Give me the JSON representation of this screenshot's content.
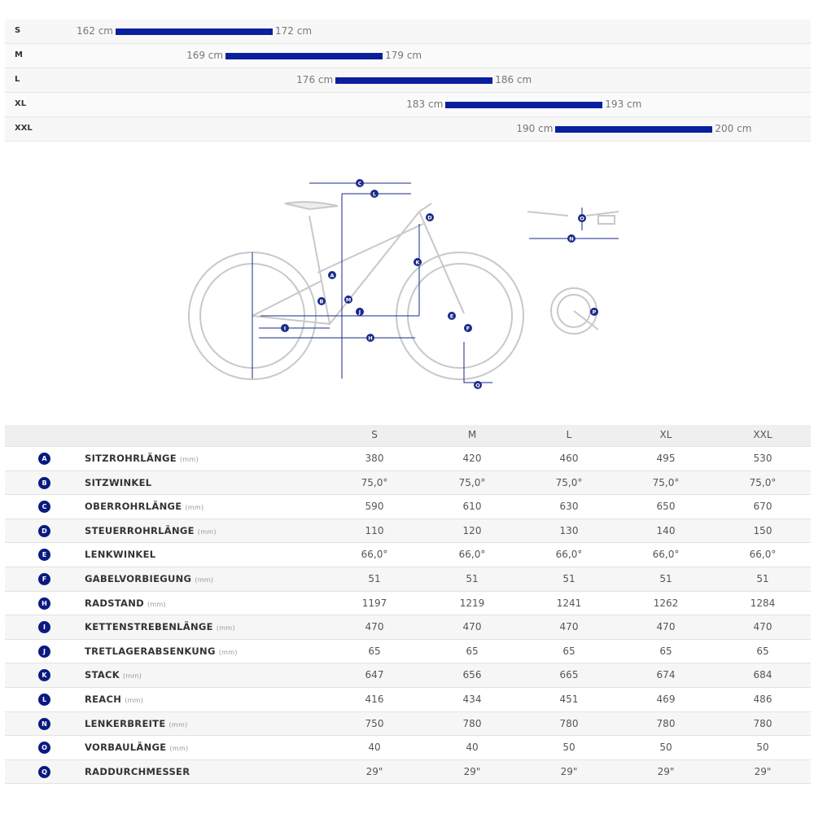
{
  "size_chart": {
    "unit": "cm",
    "rows": [
      {
        "size": "S",
        "min": 162,
        "max": 172,
        "min_label": "162 cm",
        "max_label": "172 cm"
      },
      {
        "size": "M",
        "min": 169,
        "max": 179,
        "min_label": "169 cm",
        "max_label": "179 cm"
      },
      {
        "size": "L",
        "min": 176,
        "max": 186,
        "min_label": "176 cm",
        "max_label": "186 cm"
      },
      {
        "size": "XL",
        "min": 183,
        "max": 193,
        "min_label": "183 cm",
        "max_label": "193 cm"
      },
      {
        "size": "XXL",
        "min": 190,
        "max": 200,
        "min_label": "190 cm",
        "max_label": "200 cm"
      }
    ],
    "bar_color": "#0a1f9c"
  },
  "diagram": {
    "labels": [
      "A",
      "B",
      "C",
      "D",
      "E",
      "F",
      "H",
      "I",
      "J",
      "K",
      "L",
      "M",
      "N",
      "O",
      "P",
      "Q"
    ]
  },
  "geometry": {
    "columns": [
      "S",
      "M",
      "L",
      "XL",
      "XXL"
    ],
    "rows": [
      {
        "key": "A",
        "name": "SITZROHRLÄNGE",
        "unit": "(mm)",
        "values": [
          "380",
          "420",
          "460",
          "495",
          "530"
        ]
      },
      {
        "key": "B",
        "name": "SITZWINKEL",
        "unit": "",
        "values": [
          "75,0°",
          "75,0°",
          "75,0°",
          "75,0°",
          "75,0°"
        ]
      },
      {
        "key": "C",
        "name": "OBERROHRLÄNGE",
        "unit": "(mm)",
        "values": [
          "590",
          "610",
          "630",
          "650",
          "670"
        ]
      },
      {
        "key": "D",
        "name": "STEUERROHRLÄNGE",
        "unit": "(mm)",
        "values": [
          "110",
          "120",
          "130",
          "140",
          "150"
        ]
      },
      {
        "key": "E",
        "name": "LENKWINKEL",
        "unit": "",
        "values": [
          "66,0°",
          "66,0°",
          "66,0°",
          "66,0°",
          "66,0°"
        ]
      },
      {
        "key": "F",
        "name": "GABELVORBIEGUNG",
        "unit": "(mm)",
        "values": [
          "51",
          "51",
          "51",
          "51",
          "51"
        ]
      },
      {
        "key": "H",
        "name": "RADSTAND",
        "unit": "(mm)",
        "values": [
          "1197",
          "1219",
          "1241",
          "1262",
          "1284"
        ]
      },
      {
        "key": "I",
        "name": "KETTENSTREBENLÄNGE",
        "unit": "(mm)",
        "values": [
          "470",
          "470",
          "470",
          "470",
          "470"
        ]
      },
      {
        "key": "J",
        "name": "TRETLAGERABSENKUNG",
        "unit": "(mm)",
        "values": [
          "65",
          "65",
          "65",
          "65",
          "65"
        ]
      },
      {
        "key": "K",
        "name": "STACK",
        "unit": "(mm)",
        "values": [
          "647",
          "656",
          "665",
          "674",
          "684"
        ]
      },
      {
        "key": "L",
        "name": "REACH",
        "unit": "(mm)",
        "values": [
          "416",
          "434",
          "451",
          "469",
          "486"
        ]
      },
      {
        "key": "N",
        "name": "LENKERBREITE",
        "unit": "(mm)",
        "values": [
          "750",
          "780",
          "780",
          "780",
          "780"
        ]
      },
      {
        "key": "O",
        "name": "VORBAULÄNGE",
        "unit": "(mm)",
        "values": [
          "40",
          "40",
          "50",
          "50",
          "50"
        ]
      },
      {
        "key": "Q",
        "name": "RADDURCHMESSER",
        "unit": "",
        "values": [
          "29\"",
          "29\"",
          "29\"",
          "29\"",
          "29\""
        ]
      }
    ]
  }
}
